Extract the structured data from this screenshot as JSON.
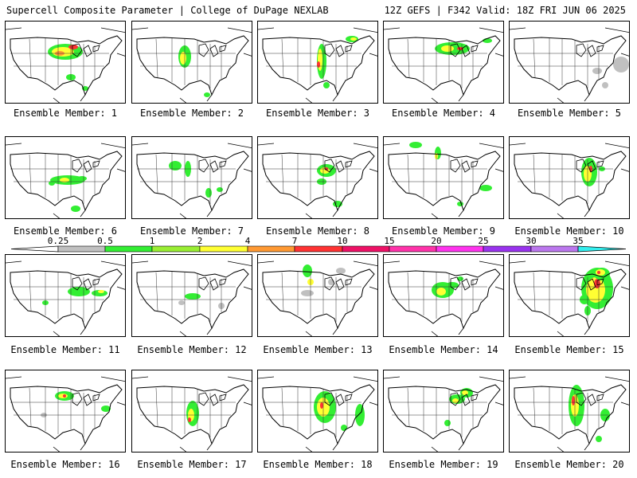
{
  "header": {
    "title": "Supercell Composite Parameter | College of DuPage NEXLAB",
    "valid": "12Z GEFS | F342 Valid: 18Z FRI JUN 06 2025"
  },
  "legend": {
    "ticks": [
      "0.25",
      "0.5",
      "1",
      "2",
      "4",
      "7",
      "10",
      "15",
      "20",
      "25",
      "30",
      "35"
    ],
    "colors": [
      "#c0c0c0",
      "#33ee33",
      "#99ee33",
      "#ffff33",
      "#ff9933",
      "#ff3333",
      "#ee1166",
      "#ff33aa",
      "#ff33ee",
      "#9933ee",
      "#bb77ee",
      "#33eeee"
    ]
  },
  "members": [
    {
      "label": "Ensemble Member: 1"
    },
    {
      "label": "Ensemble Member: 2"
    },
    {
      "label": "Ensemble Member: 3"
    },
    {
      "label": "Ensemble Member: 4"
    },
    {
      "label": "Ensemble Member: 5"
    },
    {
      "label": "Ensemble Member: 6"
    },
    {
      "label": "Ensemble Member: 7"
    },
    {
      "label": "Ensemble Member: 8"
    },
    {
      "label": "Ensemble Member: 9"
    },
    {
      "label": "Ensemble Member: 10"
    },
    {
      "label": "Ensemble Member: 11"
    },
    {
      "label": "Ensemble Member: 12"
    },
    {
      "label": "Ensemble Member: 13"
    },
    {
      "label": "Ensemble Member: 14"
    },
    {
      "label": "Ensemble Member: 15"
    },
    {
      "label": "Ensemble Member: 16"
    },
    {
      "label": "Ensemble Member: 17"
    },
    {
      "label": "Ensemble Member: 18"
    },
    {
      "label": "Ensemble Member: 19"
    },
    {
      "label": "Ensemble Member: 20"
    }
  ]
}
